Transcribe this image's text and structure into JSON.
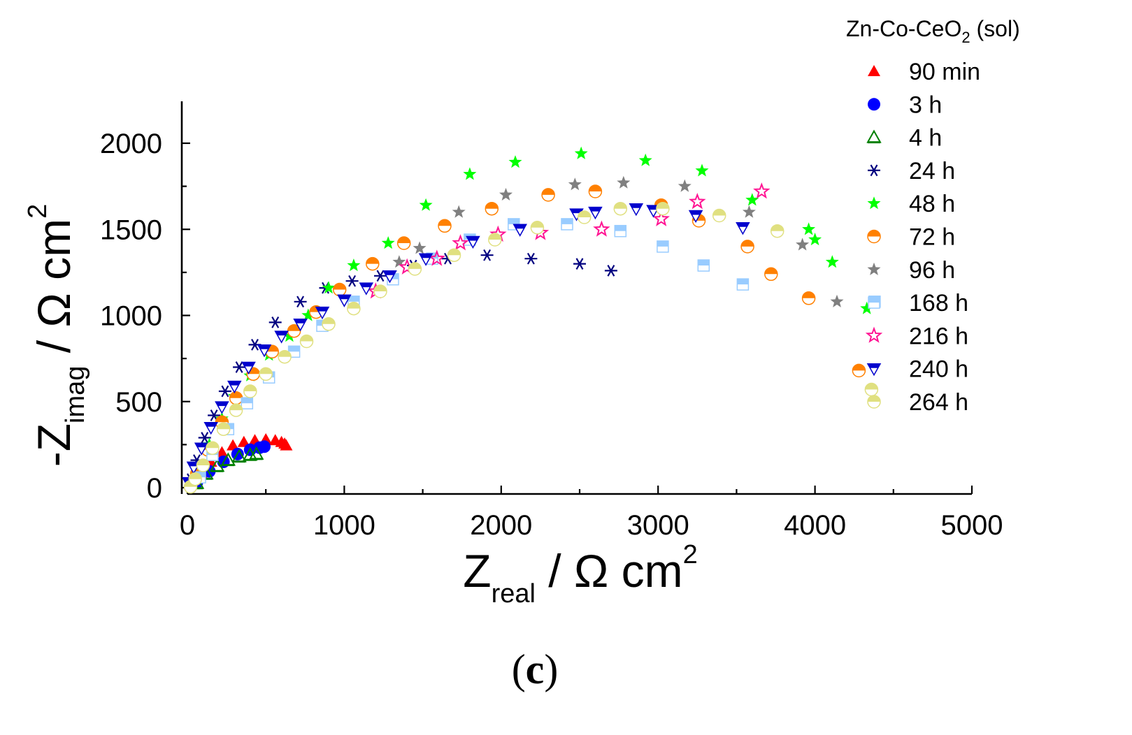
{
  "chart_data": {
    "type": "scatter",
    "title": "",
    "legend_title": "Zn-Co-CeO",
    "legend_title_sub": "2",
    "legend_title_suffix": " (sol)",
    "legend_position": "top-right",
    "panel_label_open": "(",
    "panel_label_letter": "c",
    "panel_label_close": ")",
    "xlabel": {
      "main": "Z",
      "sub": "real",
      "unit": " / Ω cm",
      "sup": "2"
    },
    "ylabel": {
      "main": "-Z",
      "sub": "imag",
      "unit": " / Ω cm",
      "sup": "2"
    },
    "xlim": [
      0,
      5000
    ],
    "ylim": [
      -40,
      2250
    ],
    "xticks": [
      "0",
      "1000",
      "2000",
      "3000",
      "4000",
      "5000"
    ],
    "yticks": [
      "0",
      "500",
      "1000",
      "1500",
      "2000"
    ],
    "series": [
      {
        "name": "90 min",
        "color": "#ff0000",
        "marker": "triangle",
        "x": [
          40,
          90,
          150,
          220,
          290,
          360,
          430,
          500,
          560,
          600,
          620,
          630
        ],
        "y": [
          20,
          80,
          150,
          205,
          245,
          265,
          275,
          280,
          275,
          265,
          255,
          245
        ]
      },
      {
        "name": "3 h",
        "color": "#0000ff",
        "marker": "circle",
        "x": [
          60,
          140,
          230,
          320,
          400,
          460,
          490
        ],
        "y": [
          30,
          95,
          150,
          195,
          220,
          232,
          238
        ]
      },
      {
        "name": "4 h",
        "color": "#008000",
        "marker": "triangle-open",
        "x": [
          60,
          120,
          190,
          260,
          330,
          400,
          440
        ],
        "y": [
          25,
          80,
          125,
          160,
          180,
          190,
          195
        ]
      },
      {
        "name": "24 h",
        "color": "#00007f",
        "marker": "asterisk",
        "x": [
          20,
          60,
          110,
          170,
          240,
          330,
          430,
          560,
          720,
          880,
          1050,
          1230,
          1440,
          1660,
          1910,
          2190,
          2500,
          2700
        ],
        "y": [
          50,
          160,
          290,
          420,
          560,
          700,
          830,
          960,
          1080,
          1160,
          1200,
          1230,
          1290,
          1330,
          1350,
          1330,
          1300,
          1260
        ]
      },
      {
        "name": "48 h",
        "color": "#00ff00",
        "marker": "star",
        "x": [
          70,
          140,
          220,
          300,
          400,
          520,
          650,
          770,
          900,
          1060,
          1280,
          1520,
          1800,
          2090,
          2510,
          2920,
          3280,
          3600,
          3960,
          4000,
          4110,
          4330
        ],
        "y": [
          100,
          250,
          400,
          530,
          650,
          770,
          880,
          1000,
          1160,
          1290,
          1420,
          1640,
          1820,
          1890,
          1940,
          1900,
          1840,
          1670,
          1500,
          1440,
          1310,
          1040
        ]
      },
      {
        "name": "72 h",
        "color": "#ff8000",
        "marker": "circle-half",
        "x": [
          60,
          130,
          220,
          310,
          420,
          540,
          680,
          820,
          970,
          1180,
          1380,
          1640,
          1940,
          2300,
          2600,
          3020,
          3260,
          3570,
          3720,
          3960,
          4280
        ],
        "y": [
          80,
          220,
          380,
          520,
          660,
          790,
          910,
          1020,
          1150,
          1300,
          1420,
          1520,
          1620,
          1700,
          1720,
          1640,
          1550,
          1400,
          1240,
          1100,
          680
        ]
      },
      {
        "name": "96 h",
        "color": "#808080",
        "marker": "star",
        "x": [
          1350,
          1480,
          1730,
          2030,
          2470,
          2780,
          3170,
          3580,
          3920,
          4140
        ],
        "y": [
          1310,
          1390,
          1600,
          1700,
          1760,
          1770,
          1750,
          1600,
          1410,
          1080
        ]
      },
      {
        "name": "168 h",
        "color": "#99ccff",
        "marker": "square-half",
        "x": [
          80,
          160,
          260,
          380,
          520,
          680,
          860,
          1060,
          1310,
          1560,
          1800,
          2080,
          2420,
          2760,
          3030,
          3290,
          3540,
          4380
        ],
        "y": [
          60,
          190,
          340,
          490,
          640,
          790,
          940,
          1080,
          1210,
          1330,
          1440,
          1530,
          1530,
          1490,
          1400,
          1290,
          1180,
          1080
        ]
      },
      {
        "name": "216 h",
        "color": "#ff1493",
        "marker": "star-open",
        "x": [
          1200,
          1400,
          1590,
          1740,
          1980,
          2250,
          2640,
          3020,
          3250,
          3660
        ],
        "y": [
          1140,
          1280,
          1330,
          1420,
          1470,
          1480,
          1500,
          1560,
          1660,
          1720
        ]
      },
      {
        "name": "240 h",
        "color": "#0000cd",
        "marker": "triangle-down-half",
        "x": [
          10,
          40,
          90,
          150,
          220,
          300,
          390,
          490,
          600,
          720,
          860,
          1000,
          1140,
          1290,
          1520,
          1820,
          2120,
          2480,
          2600,
          2860,
          2970,
          3240,
          3540
        ],
        "y": [
          30,
          120,
          230,
          350,
          470,
          590,
          700,
          800,
          880,
          950,
          1020,
          1090,
          1160,
          1230,
          1330,
          1430,
          1500,
          1590,
          1600,
          1620,
          1610,
          1580,
          1510
        ]
      },
      {
        "name": "264 h",
        "color": "#e0e080",
        "marker": "circle-half",
        "x": [
          20,
          50,
          100,
          160,
          230,
          310,
          400,
          500,
          620,
          760,
          900,
          1060,
          1230,
          1450,
          1700,
          1960,
          2230,
          2530,
          2760,
          3030,
          3390,
          3760,
          4360
        ],
        "y": [
          5,
          50,
          130,
          230,
          340,
          450,
          560,
          660,
          760,
          850,
          950,
          1040,
          1140,
          1270,
          1350,
          1440,
          1510,
          1570,
          1620,
          1620,
          1580,
          1490,
          570
        ]
      }
    ]
  }
}
